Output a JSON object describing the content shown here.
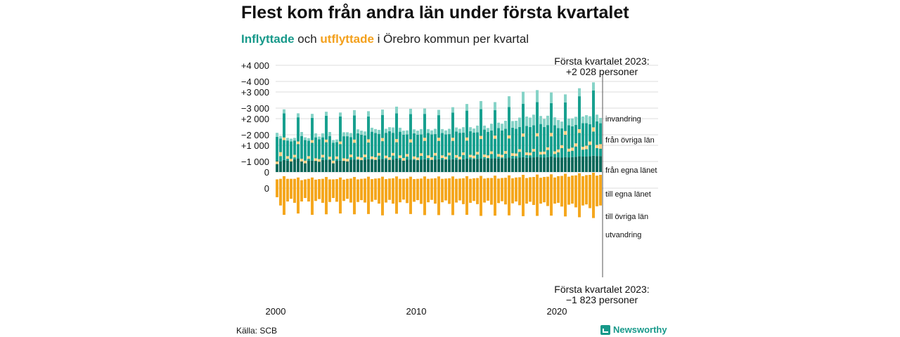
{
  "header": {
    "title": "Flest kom från andra län under första kvartalet",
    "subtitle_in": "Inflyttade",
    "subtitle_and": " och ",
    "subtitle_out": "utflyttade",
    "subtitle_rest": " i Örebro kommun per kvartal"
  },
  "footer": {
    "source": "Källa: SCB",
    "brand": "Newsworthy"
  },
  "colors": {
    "in_own_county": "#0d6a5c",
    "in_other_counties": "#18a08f",
    "immigration": "#86d3c7",
    "out_own_county": "#d9870f",
    "out_other_counties": "#f5a71e",
    "emigration": "#f8cf84"
  },
  "chart_data": {
    "type": "bar",
    "subtype": "stacked-diverging",
    "x_start": "2000 Q1",
    "x_end": "2023 Q1",
    "x_ticks": [
      "2000",
      "2010",
      "2020"
    ],
    "grid": true,
    "top_panel": {
      "ylim": [
        0,
        4000
      ],
      "y_ticks": [
        "+4 000",
        "+3 000",
        "+2 000",
        "+1 000",
        "0"
      ],
      "series_names": [
        "från egna länet",
        "från övriga län",
        "invandring"
      ],
      "annotation_line1": "Första kvartalet 2023:",
      "annotation_line2": "+2 028 personer"
    },
    "bottom_panel": {
      "ylim": [
        -4000,
        0
      ],
      "y_ticks": [
        "0",
        "−1 000",
        "−2 000",
        "−3 000",
        "−4 000"
      ],
      "series_names": [
        "till egna länet",
        "till övriga län",
        "utvandring"
      ],
      "annotation_line1": "Första kvartalet 2023:",
      "annotation_line2": "−1 823 personer"
    },
    "years": [
      {
        "year": 2000,
        "in": [
          [
            420,
            900,
            150
          ],
          [
            400,
            850,
            100
          ],
          [
            450,
            1750,
            150
          ],
          [
            430,
            750,
            100
          ]
        ],
        "out": [
          [
            330,
            670,
            100
          ],
          [
            350,
            1000,
            150
          ],
          [
            450,
            1450,
            100
          ],
          [
            350,
            850,
            100
          ]
        ]
      },
      {
        "year": 2001,
        "in": [
          [
            450,
            700,
            100
          ],
          [
            480,
            700,
            100
          ],
          [
            500,
            1550,
            150
          ],
          [
            450,
            900,
            150
          ]
        ],
        "out": [
          [
            350,
            750,
            100
          ],
          [
            350,
            900,
            100
          ],
          [
            400,
            1350,
            100
          ],
          [
            300,
            800,
            100
          ]
        ]
      },
      {
        "year": 2002,
        "in": [
          [
            400,
            800,
            100
          ],
          [
            420,
            750,
            100
          ],
          [
            430,
            1600,
            150
          ],
          [
            450,
            850,
            150
          ]
        ],
        "out": [
          [
            330,
            700,
            100
          ],
          [
            350,
            850,
            100
          ],
          [
            400,
            1400,
            100
          ],
          [
            320,
            800,
            100
          ]
        ]
      },
      {
        "year": 2003,
        "in": [
          [
            430,
            800,
            100
          ],
          [
            450,
            850,
            150
          ],
          [
            460,
            1650,
            150
          ],
          [
            450,
            900,
            150
          ]
        ],
        "out": [
          [
            340,
            750,
            100
          ],
          [
            350,
            900,
            100
          ],
          [
            420,
            1400,
            100
          ],
          [
            330,
            850,
            100
          ]
        ]
      },
      {
        "year": 2004,
        "in": [
          [
            400,
            700,
            100
          ],
          [
            420,
            700,
            100
          ],
          [
            430,
            1650,
            150
          ],
          [
            440,
            900,
            150
          ]
        ],
        "out": [
          [
            330,
            700,
            100
          ],
          [
            340,
            850,
            100
          ],
          [
            400,
            1350,
            100
          ],
          [
            320,
            800,
            100
          ]
        ]
      },
      {
        "year": 2005,
        "in": [
          [
            440,
            900,
            150
          ],
          [
            460,
            850,
            150
          ],
          [
            470,
            1650,
            200
          ],
          [
            450,
            1000,
            150
          ]
        ],
        "out": [
          [
            350,
            750,
            100
          ],
          [
            360,
            900,
            100
          ],
          [
            420,
            1400,
            120
          ],
          [
            330,
            850,
            100
          ]
        ]
      },
      {
        "year": 2006,
        "in": [
          [
            450,
            950,
            150
          ],
          [
            470,
            900,
            150
          ],
          [
            480,
            1600,
            200
          ],
          [
            460,
            1050,
            150
          ]
        ],
        "out": [
          [
            350,
            800,
            100
          ],
          [
            360,
            900,
            100
          ],
          [
            430,
            1400,
            120
          ],
          [
            340,
            850,
            100
          ]
        ]
      },
      {
        "year": 2007,
        "in": [
          [
            460,
            1000,
            150
          ],
          [
            480,
            950,
            150
          ],
          [
            490,
            1650,
            200
          ],
          [
            470,
            1000,
            150
          ]
        ],
        "out": [
          [
            360,
            800,
            100
          ],
          [
            370,
            950,
            100
          ],
          [
            430,
            1450,
            120
          ],
          [
            340,
            880,
            100
          ]
        ]
      },
      {
        "year": 2008,
        "in": [
          [
            480,
            1050,
            150
          ],
          [
            470,
            1000,
            200
          ],
          [
            500,
            1700,
            250
          ],
          [
            460,
            1050,
            150
          ]
        ],
        "out": [
          [
            360,
            800,
            100
          ],
          [
            370,
            950,
            100
          ],
          [
            440,
            1400,
            120
          ],
          [
            350,
            880,
            100
          ]
        ]
      },
      {
        "year": 2009,
        "in": [
          [
            450,
            950,
            150
          ],
          [
            460,
            950,
            150
          ],
          [
            470,
            1700,
            200
          ],
          [
            450,
            1000,
            150
          ]
        ],
        "out": [
          [
            350,
            780,
            100
          ],
          [
            360,
            920,
            100
          ],
          [
            430,
            1400,
            120
          ],
          [
            340,
            850,
            100
          ]
        ]
      },
      {
        "year": 2010,
        "in": [
          [
            450,
            950,
            150
          ],
          [
            460,
            950,
            200
          ],
          [
            480,
            1700,
            200
          ],
          [
            460,
            1000,
            150
          ]
        ],
        "out": [
          [
            350,
            800,
            100
          ],
          [
            360,
            950,
            100
          ],
          [
            440,
            1450,
            120
          ],
          [
            350,
            880,
            100
          ]
        ]
      },
      {
        "year": 2011,
        "in": [
          [
            460,
            950,
            150
          ],
          [
            470,
            950,
            200
          ],
          [
            480,
            1650,
            200
          ],
          [
            460,
            1000,
            150
          ]
        ],
        "out": [
          [
            360,
            800,
            100
          ],
          [
            370,
            950,
            100
          ],
          [
            440,
            1450,
            120
          ],
          [
            350,
            880,
            100
          ]
        ]
      },
      {
        "year": 2012,
        "in": [
          [
            460,
            950,
            150
          ],
          [
            470,
            950,
            200
          ],
          [
            480,
            1750,
            200
          ],
          [
            470,
            1050,
            150
          ]
        ],
        "out": [
          [
            360,
            820,
            100
          ],
          [
            370,
            960,
            100
          ],
          [
            440,
            1450,
            120
          ],
          [
            350,
            890,
            100
          ]
        ]
      },
      {
        "year": 2013,
        "in": [
          [
            470,
            1000,
            150
          ],
          [
            480,
            1000,
            200
          ],
          [
            500,
            1800,
            250
          ],
          [
            480,
            1050,
            150
          ]
        ],
        "out": [
          [
            360,
            820,
            100
          ],
          [
            370,
            970,
            100
          ],
          [
            450,
            1450,
            120
          ],
          [
            350,
            900,
            100
          ]
        ]
      },
      {
        "year": 2014,
        "in": [
          [
            480,
            1000,
            150
          ],
          [
            490,
            1000,
            250
          ],
          [
            510,
            1850,
            300
          ],
          [
            490,
            1100,
            150
          ]
        ],
        "out": [
          [
            370,
            850,
            100
          ],
          [
            380,
            980,
            100
          ],
          [
            460,
            1500,
            120
          ],
          [
            360,
            900,
            100
          ]
        ]
      },
      {
        "year": 2015,
        "in": [
          [
            500,
            1000,
            150
          ],
          [
            510,
            1050,
            250
          ],
          [
            520,
            1800,
            300
          ],
          [
            500,
            1150,
            200
          ]
        ],
        "out": [
          [
            380,
            850,
            100
          ],
          [
            380,
            1000,
            100
          ],
          [
            470,
            1500,
            120
          ],
          [
            360,
            920,
            100
          ]
        ]
      },
      {
        "year": 2016,
        "in": [
          [
            510,
            1050,
            250
          ],
          [
            520,
            1100,
            300
          ],
          [
            540,
            1900,
            400
          ],
          [
            510,
            1150,
            250
          ]
        ],
        "out": [
          [
            380,
            870,
            100
          ],
          [
            390,
            1000,
            100
          ],
          [
            480,
            1500,
            120
          ],
          [
            370,
            940,
            100
          ]
        ]
      },
      {
        "year": 2017,
        "in": [
          [
            520,
            1100,
            300
          ],
          [
            540,
            1150,
            350
          ],
          [
            560,
            2000,
            450
          ],
          [
            530,
            1200,
            350
          ]
        ],
        "out": [
          [
            400,
            900,
            100
          ],
          [
            410,
            1050,
            100
          ],
          [
            500,
            1550,
            120
          ],
          [
            380,
            960,
            100
          ]
        ]
      },
      {
        "year": 2018,
        "in": [
          [
            540,
            1150,
            350
          ],
          [
            550,
            1200,
            400
          ],
          [
            570,
            2050,
            450
          ],
          [
            550,
            1250,
            300
          ]
        ],
        "out": [
          [
            410,
            920,
            100
          ],
          [
            420,
            1050,
            100
          ],
          [
            510,
            1550,
            120
          ],
          [
            390,
            970,
            100
          ]
        ]
      },
      {
        "year": 2019,
        "in": [
          [
            540,
            1150,
            300
          ],
          [
            560,
            1200,
            350
          ],
          [
            580,
            2000,
            400
          ],
          [
            550,
            1200,
            300
          ]
        ],
        "out": [
          [
            420,
            950,
            100
          ],
          [
            430,
            1100,
            100
          ],
          [
            520,
            1550,
            130
          ],
          [
            400,
            980,
            100
          ]
        ]
      },
      {
        "year": 2020,
        "in": [
          [
            550,
            1100,
            300
          ],
          [
            540,
            1100,
            250
          ],
          [
            560,
            2050,
            300
          ],
          [
            550,
            1200,
            250
          ]
        ],
        "out": [
          [
            450,
            1000,
            110
          ],
          [
            460,
            1150,
            110
          ],
          [
            540,
            1600,
            140
          ],
          [
            430,
            1050,
            110
          ]
        ]
      },
      {
        "year": 2021,
        "in": [
          [
            560,
            1150,
            300
          ],
          [
            570,
            1200,
            300
          ],
          [
            590,
            2250,
            300
          ],
          [
            580,
            1250,
            250
          ]
        ],
        "out": [
          [
            470,
            1050,
            120
          ],
          [
            480,
            1200,
            120
          ],
          [
            560,
            1650,
            140
          ],
          [
            450,
            1100,
            110
          ]
        ]
      },
      {
        "year": 2022,
        "in": [
          [
            580,
            1250,
            300
          ],
          [
            590,
            1200,
            300
          ],
          [
            610,
            2450,
            300
          ],
          [
            600,
            1300,
            250
          ]
        ],
        "out": [
          [
            490,
            1100,
            130
          ],
          [
            500,
            1250,
            130
          ],
          [
            580,
            1700,
            160
          ],
          [
            470,
            1150,
            120
          ]
        ]
      },
      {
        "year": 2023,
        "in": [
          [
            600,
            1228,
            200
          ]
        ],
        "out": [
          [
            500,
            1150,
            173
          ]
        ]
      }
    ]
  }
}
